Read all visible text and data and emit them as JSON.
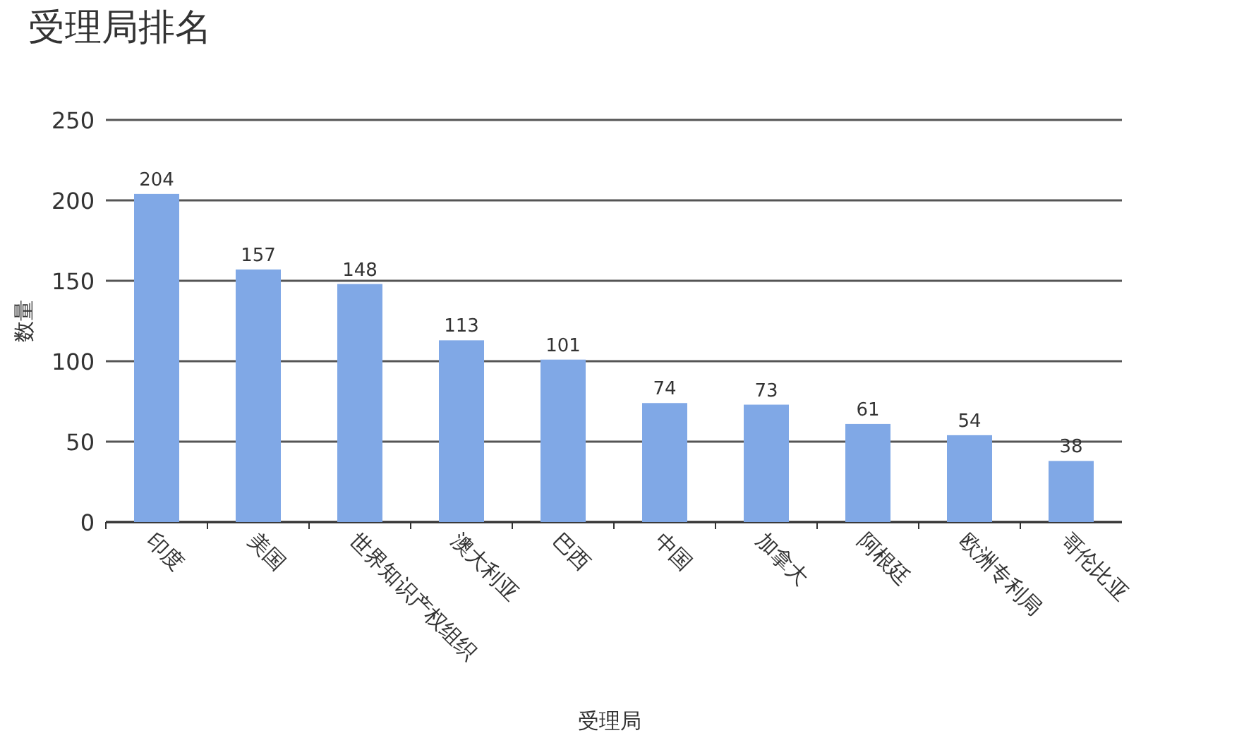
{
  "chart_data": {
    "type": "bar",
    "title": "受理局排名",
    "xlabel": "受理局",
    "ylabel": "数量",
    "categories": [
      "印度",
      "美国",
      "世界知识产权组织",
      "澳大利亚",
      "巴西",
      "中国",
      "加拿大",
      "阿根廷",
      "欧洲专利局",
      "哥伦比亚"
    ],
    "values": [
      204,
      157,
      148,
      113,
      101,
      74,
      73,
      61,
      54,
      38
    ],
    "color": "#80a8e6",
    "ylim": [
      0,
      250
    ],
    "yticks": [
      0,
      50,
      100,
      150,
      200,
      250
    ],
    "grid": "y",
    "data_labels": true
  }
}
